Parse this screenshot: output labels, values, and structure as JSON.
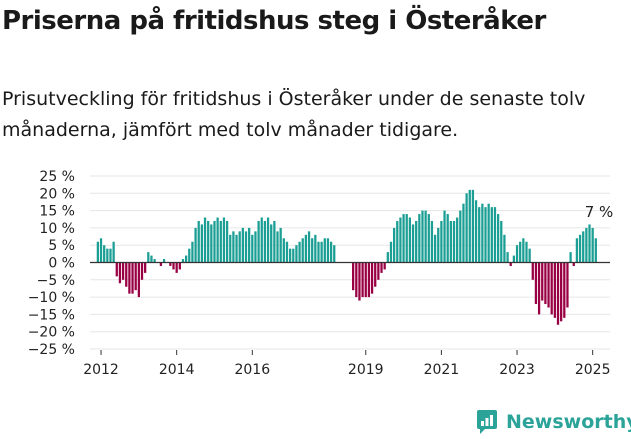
{
  "title": "Priserna på fritidshus steg i Österåker",
  "subtitle": "Prisutveckling för fritidshus i Österåker under de senaste tolv månaderna, jämfört med tolv månader tidigare.",
  "brand": {
    "name": "Newsworthy",
    "icon": "newsworthy-logo-icon"
  },
  "colors": {
    "positive": "#1b9e94",
    "negative": "#990044",
    "grid": "#e6e6e6",
    "zero": "#333333"
  },
  "chart_data": {
    "type": "bar",
    "y_ticks": [
      "25 %",
      "20 %",
      "15 %",
      "10 %",
      "5 %",
      "0 %",
      "−5 %",
      "−10 %",
      "−15 %",
      "−20 %",
      "−25 %"
    ],
    "ylim": [
      -25,
      25
    ],
    "x_ticks": [
      {
        "label": "2012",
        "year": 2012
      },
      {
        "label": "2014",
        "year": 2014
      },
      {
        "label": "2016",
        "year": 2016
      },
      {
        "label": "2019",
        "year": 2019
      },
      {
        "label": "2021",
        "year": 2021
      },
      {
        "label": "2023",
        "year": 2023
      },
      {
        "label": "2025",
        "year": 2025
      }
    ],
    "x_range": [
      "2011-10",
      "2025-07"
    ],
    "grid": true,
    "annotation": {
      "label": "7 %",
      "month": "2025-03"
    },
    "series": [
      {
        "start": "2011-12",
        "values": [
          6,
          7,
          5,
          4,
          4,
          6
        ]
      },
      {
        "start": "2012-06",
        "values": [
          -4,
          -6,
          -5,
          -7,
          -9,
          -9,
          -8,
          -10,
          -5,
          -3
        ]
      },
      {
        "start": "2013-04",
        "values": [
          3,
          2,
          1,
          0,
          -1
        ]
      },
      {
        "start": "2013-09",
        "values": [
          1,
          0,
          -1,
          -2,
          -3,
          -2
        ]
      },
      {
        "start": "2014-03",
        "values": [
          1,
          2,
          4,
          6,
          10,
          12,
          11,
          13,
          12,
          11,
          12,
          13,
          12,
          13,
          12,
          8,
          9,
          8,
          9,
          10,
          9,
          10,
          8,
          9,
          12,
          13,
          12,
          13,
          11,
          12,
          9,
          10,
          7,
          6,
          4,
          4,
          5,
          6,
          7,
          8,
          9,
          7,
          8,
          6,
          6,
          7,
          7,
          6,
          5
        ]
      },
      {
        "start": "2018-09",
        "values": [
          -8,
          -10,
          -11,
          -10,
          -10,
          -10,
          -9,
          -7,
          -5,
          -3,
          -2
        ]
      },
      {
        "start": "2019-08",
        "values": [
          3,
          6,
          10,
          12,
          13,
          14,
          14,
          13,
          11,
          12,
          14,
          15,
          15,
          14,
          12,
          8,
          10,
          12,
          15,
          14,
          12,
          12,
          13,
          15,
          17,
          20,
          21,
          21,
          18,
          16,
          17,
          16,
          17,
          16,
          16,
          14,
          12,
          8,
          3
        ]
      },
      {
        "start": "2022-11",
        "values": [
          -1
        ]
      },
      {
        "start": "2022-12",
        "values": [
          2,
          5,
          6,
          7,
          6,
          4
        ]
      },
      {
        "start": "2023-06",
        "values": [
          -5,
          -12,
          -15,
          -11,
          -12,
          -13,
          -15,
          -16,
          -18,
          -17,
          -16,
          -13
        ]
      },
      {
        "start": "2024-06",
        "values": [
          3,
          -1
        ]
      },
      {
        "start": "2024-08",
        "values": [
          7,
          8,
          9,
          10,
          11,
          10,
          7
        ]
      }
    ]
  }
}
